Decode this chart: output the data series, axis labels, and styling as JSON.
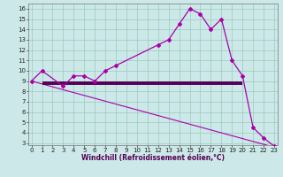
{
  "title": "",
  "xlabel": "Windchill (Refroidissement éolien,°C)",
  "ylabel": "",
  "background_color": "#cce8e8",
  "line_color": "#aa00aa",
  "line_color_flat": "#550055",
  "flat_line_x": [
    1,
    20
  ],
  "flat_line_y": [
    8.8,
    8.8
  ],
  "lower_line_x": [
    0,
    23
  ],
  "lower_line_y": [
    9.0,
    2.6
  ],
  "jagged_x": [
    0,
    1,
    3,
    4,
    5,
    6,
    7,
    8,
    12,
    13,
    14,
    15,
    16,
    17,
    18,
    19,
    20,
    21,
    22,
    23
  ],
  "jagged_y": [
    9.0,
    10.0,
    8.5,
    9.5,
    9.5,
    9.0,
    10.0,
    10.5,
    12.5,
    13.0,
    14.5,
    16.0,
    15.5,
    14.0,
    15.0,
    11.0,
    9.5,
    4.5,
    3.5,
    2.7
  ],
  "xlim": [
    -0.3,
    23.3
  ],
  "ylim": [
    2.8,
    16.5
  ],
  "yticks": [
    3,
    4,
    5,
    6,
    7,
    8,
    9,
    10,
    11,
    12,
    13,
    14,
    15,
    16
  ],
  "xticks": [
    0,
    1,
    2,
    3,
    4,
    5,
    6,
    7,
    8,
    9,
    10,
    11,
    12,
    13,
    14,
    15,
    16,
    17,
    18,
    19,
    20,
    21,
    22,
    23
  ],
  "grid_color": "#99ccbb",
  "marker": "D",
  "markersize": 2.0,
  "tick_fontsize": 5.0,
  "xlabel_fontsize": 5.5
}
